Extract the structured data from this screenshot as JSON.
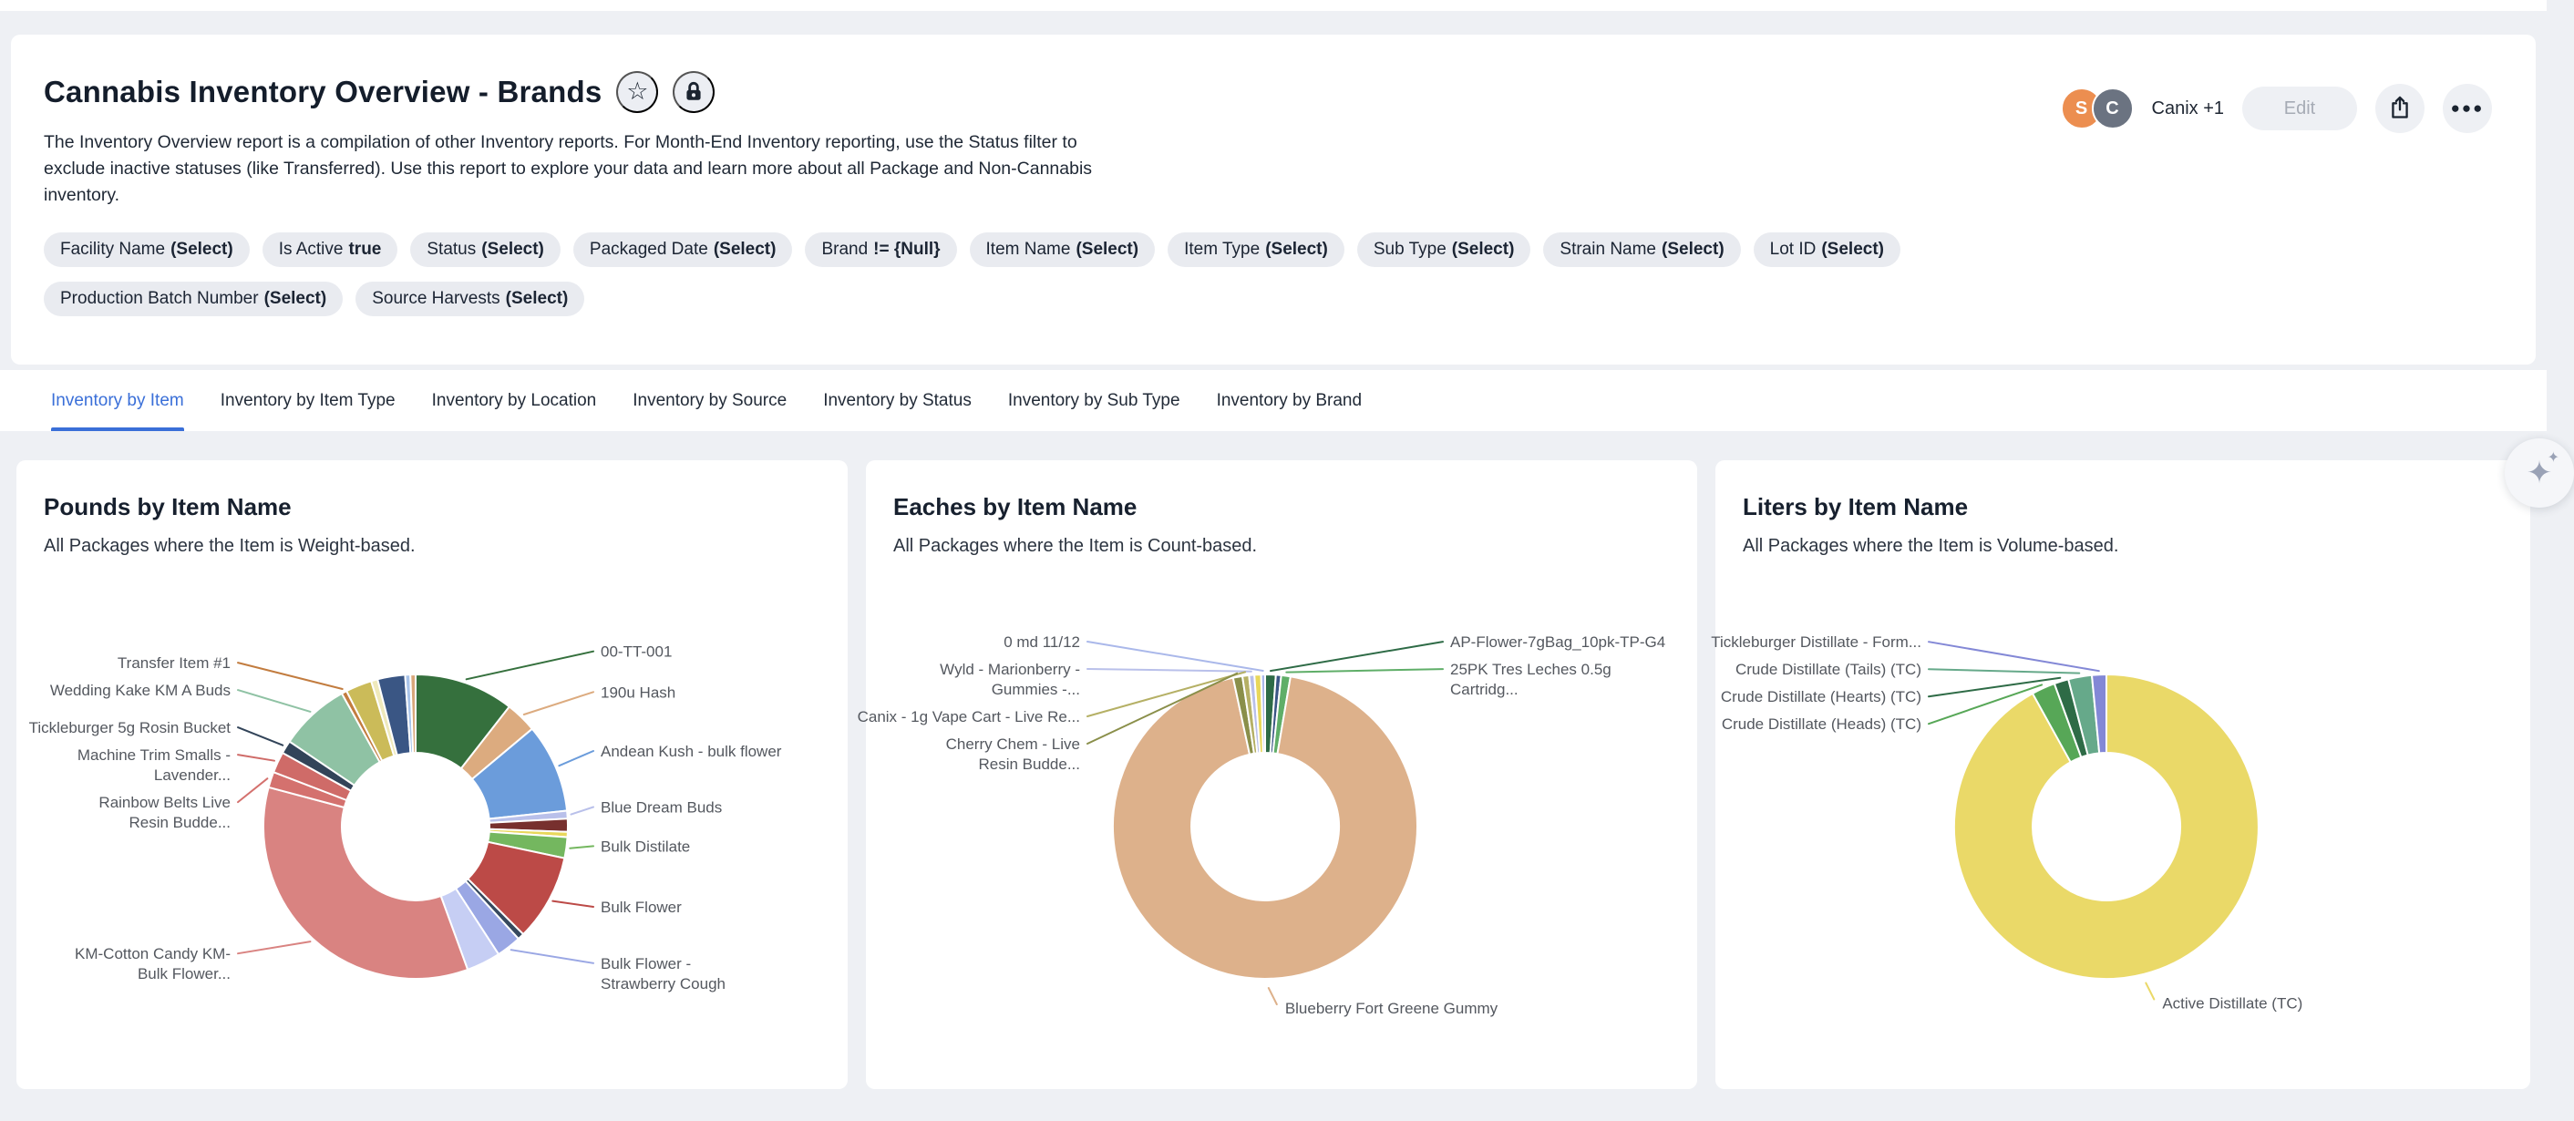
{
  "colors": {
    "accent": "#3a6fd8",
    "page_bg": "#eef0f4",
    "chip_bg": "#e9ebf0",
    "card_bg": "#ffffff",
    "avatar_orange": "#ec8e50",
    "avatar_gray": "#6b7381"
  },
  "icons": {
    "star": "☆",
    "dots": "●●●",
    "sparkle_big": "✦",
    "sparkle_small": "✦"
  },
  "header": {
    "title": "Cannabis Inventory Overview - Brands",
    "description": "The Inventory Overview report is a compilation of other Inventory reports. For Month-End Inventory reporting, use the Status filter to exclude inactive statuses (like Transferred). Use this report to explore your data and learn more about all Package and Non-Cannabis inventory.",
    "avatars": [
      {
        "initial": "S",
        "color": "#ec8e50"
      },
      {
        "initial": "C",
        "color": "#6b7381"
      }
    ],
    "collaborators": "Canix +1",
    "edit_label": "Edit"
  },
  "filters": {
    "rows": [
      [
        {
          "field": "Facility Name",
          "value": "(Select)"
        },
        {
          "field": "Is Active",
          "value": "true"
        },
        {
          "field": "Status",
          "value": "(Select)"
        },
        {
          "field": "Packaged Date",
          "value": "(Select)"
        },
        {
          "field": "Brand",
          "value": "!= {Null}"
        },
        {
          "field": "Item Name",
          "value": "(Select)"
        },
        {
          "field": "Item Type",
          "value": "(Select)"
        },
        {
          "field": "Sub Type",
          "value": "(Select)"
        },
        {
          "field": "Strain Name",
          "value": "(Select)"
        },
        {
          "field": "Lot ID",
          "value": "(Select)"
        }
      ],
      [
        {
          "field": "Production Batch Number",
          "value": "(Select)"
        },
        {
          "field": "Source Harvests",
          "value": "(Select)"
        }
      ]
    ]
  },
  "tabs": {
    "active": "Inventory by Item",
    "items": [
      "Inventory by Item",
      "Inventory by Item Type",
      "Inventory by Location",
      "Inventory by Source",
      "Inventory by Status",
      "Inventory by Sub Type",
      "Inventory by Brand"
    ]
  },
  "chart_data": [
    {
      "type": "pie",
      "subtype": "donut",
      "title": "Pounds by Item Name",
      "subtitle": "All Packages where the Item is Weight-based.",
      "legend_position": "none",
      "values_unit": "relative share (degrees of arc, estimated from pixels; no numeric labels shown)",
      "slices": [
        {
          "label": "00-TT-001",
          "value": 38,
          "color": "#35703d"
        },
        {
          "label": "190u Hash",
          "value": 12,
          "color": "#dcab7f"
        },
        {
          "label": "Andean Kush - bulk flower",
          "value": 34,
          "color": "#6b9cdb"
        },
        {
          "label": "Blue Dream Buds",
          "value": 3,
          "color": "#b9c0ea"
        },
        {
          "label": "",
          "value": 5,
          "color": "#77302e"
        },
        {
          "label": "",
          "value": 2,
          "color": "#e8d75b"
        },
        {
          "label": "Bulk Distilate",
          "value": 8,
          "color": "#74b75f"
        },
        {
          "label": "Bulk Flower",
          "value": 33,
          "color": "#bc4a47"
        },
        {
          "label": "",
          "value": 2.5,
          "color": "#36495e"
        },
        {
          "label": "Bulk Flower -\nStrawberry Cough",
          "value": 9.5,
          "color": "#9aa7e4"
        },
        {
          "label": "",
          "value": 13,
          "color": "#c6cef4"
        },
        {
          "label": "KM-Cotton Candy KM-\nBulk Flower...",
          "value": 125,
          "color": "#d98381"
        },
        {
          "label": "Rainbow Belts Live\nResin Budde...",
          "value": 6,
          "color": "#d4716e"
        },
        {
          "label": "Machine Trim Smalls -\nLavender...",
          "value": 8,
          "color": "#cf6b68"
        },
        {
          "label": "Tickleburger 5g Rosin Bucket",
          "value": 5,
          "color": "#324459"
        },
        {
          "label": "Wedding Kake KM A Buds",
          "value": 27,
          "color": "#8fc2a4"
        },
        {
          "label": "Transfer Item #1",
          "value": 2,
          "color": "#c27c3f"
        },
        {
          "label": "",
          "value": 10,
          "color": "#cbbb59"
        },
        {
          "label": "",
          "value": 2.5,
          "color": "#efe9bb"
        },
        {
          "label": "",
          "value": 10.5,
          "color": "#3a5684"
        },
        {
          "label": "",
          "value": 2,
          "color": "#a9c4ea"
        },
        {
          "label": "",
          "value": 2,
          "color": "#d9a77a"
        }
      ]
    },
    {
      "type": "pie",
      "subtype": "donut",
      "title": "Eaches by Item Name",
      "subtitle": "All Packages where the Item is Count-based.",
      "legend_position": "none",
      "values_unit": "relative share (degrees of arc, estimated from pixels; no numeric labels shown)",
      "slices": [
        {
          "label": "AP-Flower-7gBag_10pk-TP-G4",
          "value": 4,
          "color": "#2e6b46"
        },
        {
          "label": "",
          "value": 2,
          "color": "#3a5684"
        },
        {
          "label": "25PK Tres Leches 0.5g\nCartridg...",
          "value": 3.5,
          "color": "#5fae68"
        },
        {
          "label": "Blueberry Fort Greene Gummy",
          "value": 334,
          "color": "#ddb18b"
        },
        {
          "label": "Cherry Chem - Live\nResin Budde...",
          "value": 3.5,
          "color": "#8a8f4a"
        },
        {
          "label": "Canix - 1g Vape Cart - Live Re...",
          "value": 2.5,
          "color": "#b5b065"
        },
        {
          "label": "Wyld - Marionberry -\nGummies -...",
          "value": 2,
          "color": "#b9c0ea"
        },
        {
          "label": "",
          "value": 2.5,
          "color": "#e8d75b"
        },
        {
          "label": "0 md 11/12",
          "value": 1.5,
          "color": "#aab8ea"
        }
      ]
    },
    {
      "type": "pie",
      "subtype": "donut",
      "title": "Liters by Item Name",
      "subtitle": "All Packages where the Item is Volume-based.",
      "legend_position": "none",
      "values_unit": "relative share (degrees of arc, estimated from pixels; no numeric labels shown)",
      "slices": [
        {
          "label": "Active Distillate (TC)",
          "value": 331,
          "color": "#ead968"
        },
        {
          "label": "Crude Distillate (Heads) (TC)",
          "value": 9,
          "color": "#57a757"
        },
        {
          "label": "Crude Distillate (Hearts) (TC)",
          "value": 5.5,
          "color": "#2e6b46"
        },
        {
          "label": "Crude Distillate (Tails) (TC)",
          "value": 9,
          "color": "#66a98a"
        },
        {
          "label": "Tickleburger Distillate - Form...",
          "value": 5.5,
          "color": "#8388d6"
        }
      ]
    }
  ]
}
